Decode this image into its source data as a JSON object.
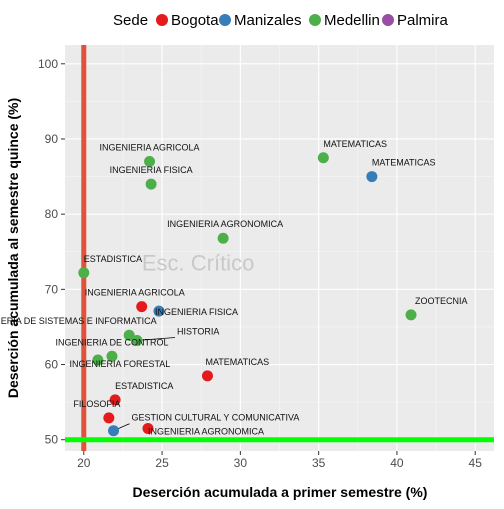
{
  "chart_data": {
    "type": "scatter",
    "xlabel": "Deserción acumulada a primer semestre (%)",
    "ylabel": "Deserción acumulada al semestre quince (%)",
    "xlim": [
      18.8,
      46.2
    ],
    "ylim": [
      48.5,
      102.5
    ],
    "xticks": [
      20,
      25,
      30,
      35,
      40,
      45
    ],
    "yticks": [
      50,
      60,
      70,
      80,
      90,
      100
    ],
    "grid": true,
    "legend": {
      "title": "Sede",
      "position": "top",
      "items": [
        {
          "name": "Bogota",
          "color": "#e41a1c"
        },
        {
          "name": "Manizales",
          "color": "#377eb8"
        },
        {
          "name": "Medellin",
          "color": "#4daf4a"
        },
        {
          "name": "Palmira",
          "color": "#984ea3"
        }
      ]
    },
    "reference_lines": {
      "vertical": {
        "x": 20,
        "color": "#e0533a"
      },
      "horizontal": {
        "y": 50,
        "color": "#00ff00"
      }
    },
    "watermark": "Esc. Crítico",
    "points": [
      {
        "label": "INGENIERIA AGRICOLA",
        "x": 24.2,
        "y": 87.0,
        "sede": "Medellin"
      },
      {
        "label": "INGENIERIA FISICA",
        "x": 24.3,
        "y": 84.0,
        "sede": "Medellin"
      },
      {
        "label": "MATEMATICAS",
        "x": 35.3,
        "y": 87.5,
        "sede": "Medellin"
      },
      {
        "label": "MATEMATICAS",
        "x": 38.4,
        "y": 85.0,
        "sede": "Manizales"
      },
      {
        "label": "INGENIERIA AGRONOMICA",
        "x": 28.9,
        "y": 76.8,
        "sede": "Medellin"
      },
      {
        "label": "ESTADISTICA",
        "x": 20.0,
        "y": 72.2,
        "sede": "Medellin"
      },
      {
        "label": "INGENIERIA AGRICOLA",
        "x": 23.7,
        "y": 67.7,
        "sede": "Bogota"
      },
      {
        "label": "INGENIERIA FISICA",
        "x": 24.8,
        "y": 67.1,
        "sede": "Manizales"
      },
      {
        "label": "ZOOTECNIA",
        "x": 40.9,
        "y": 66.6,
        "sede": "Medellin"
      },
      {
        "label": "INGENIERIA DE SISTEMAS E INFORMATICA",
        "x": 22.9,
        "y": 63.9,
        "sede": "Medellin"
      },
      {
        "label": "HISTORIA",
        "x": 23.4,
        "y": 63.2,
        "sede": "Medellin"
      },
      {
        "label": "INGENIERIA DE CONTROL",
        "x": 21.8,
        "y": 61.1,
        "sede": "Medellin"
      },
      {
        "label": "INGENIERIA FORESTAL",
        "x": 20.9,
        "y": 60.6,
        "sede": "Medellin"
      },
      {
        "label": "MATEMATICAS",
        "x": 27.9,
        "y": 58.5,
        "sede": "Bogota"
      },
      {
        "label": "ESTADISTICA",
        "x": 22.0,
        "y": 55.3,
        "sede": "Bogota"
      },
      {
        "label": "FILOSOFIA",
        "x": 21.6,
        "y": 52.9,
        "sede": "Bogota"
      },
      {
        "label": "GESTION CULTURAL Y COMUNICATIVA",
        "x": 21.9,
        "y": 51.2,
        "sede": "Manizales"
      },
      {
        "label": "INGENIERIA AGRONOMICA",
        "x": 24.1,
        "y": 51.5,
        "sede": "Bogota"
      }
    ]
  }
}
